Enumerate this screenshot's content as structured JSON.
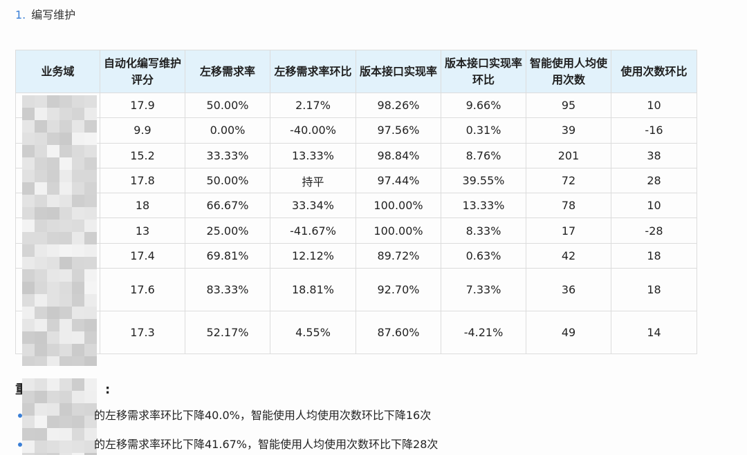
{
  "heading": {
    "number": "1.",
    "text": "编写维护"
  },
  "table": {
    "headers": [
      "业务域",
      "自动化编写维护评分",
      "左移需求率",
      "左移需求率环比",
      "版本接口实现率",
      "版本接口实现率环比",
      "智能使用人均使用次数",
      "使用次数环比"
    ],
    "rows": [
      {
        "score": "17.9",
        "shift": "50.00%",
        "shift_mom": "2.17%",
        "shift_mom_trend": "up",
        "impl": "98.26%",
        "impl_mom": "9.66%",
        "impl_mom_trend": "up",
        "usage": "95",
        "usage_mom": "10",
        "usage_mom_trend": "up"
      },
      {
        "score": "9.9",
        "shift": "0.00%",
        "shift_mom": "-40.00%",
        "shift_mom_trend": "down",
        "impl": "97.56%",
        "impl_mom": "0.31%",
        "impl_mom_trend": "up",
        "usage": "39",
        "usage_mom": "-16",
        "usage_mom_trend": "down"
      },
      {
        "score": "15.2",
        "shift": "33.33%",
        "shift_mom": "13.33%",
        "shift_mom_trend": "up",
        "impl": "98.84%",
        "impl_mom": "8.76%",
        "impl_mom_trend": "up",
        "usage": "201",
        "usage_mom": "38",
        "usage_mom_trend": "up"
      },
      {
        "score": "17.8",
        "shift": "50.00%",
        "shift_mom": "持平",
        "shift_mom_trend": "flat",
        "impl": "97.44%",
        "impl_mom": "39.55%",
        "impl_mom_trend": "up",
        "usage": "72",
        "usage_mom": "28",
        "usage_mom_trend": "up"
      },
      {
        "score": "18",
        "shift": "66.67%",
        "shift_mom": "33.34%",
        "shift_mom_trend": "up",
        "impl": "100.00%",
        "impl_mom": "13.33%",
        "impl_mom_trend": "up",
        "usage": "78",
        "usage_mom": "10",
        "usage_mom_trend": "up"
      },
      {
        "score": "13",
        "shift": "25.00%",
        "shift_mom": "-41.67%",
        "shift_mom_trend": "down",
        "impl": "100.00%",
        "impl_mom": "8.33%",
        "impl_mom_trend": "up",
        "usage": "17",
        "usage_mom": "-28",
        "usage_mom_trend": "down"
      },
      {
        "score": "17.4",
        "shift": "69.81%",
        "shift_mom": "12.12%",
        "shift_mom_trend": "up",
        "impl": "89.72%",
        "impl_mom": "0.63%",
        "impl_mom_trend": "up",
        "usage": "42",
        "usage_mom": "18",
        "usage_mom_trend": "up"
      },
      {
        "score": "17.6",
        "shift": "83.33%",
        "shift_mom": "18.81%",
        "shift_mom_trend": "up",
        "impl": "92.70%",
        "impl_mom": "7.33%",
        "impl_mom_trend": "up",
        "usage": "36",
        "usage_mom": "18",
        "usage_mom_trend": "up"
      },
      {
        "score": "17.3",
        "shift": "52.17%",
        "shift_mom": "4.55%",
        "shift_mom_trend": "up",
        "impl": "87.60%",
        "impl_mom": "-4.21%",
        "impl_mom_trend": "down",
        "usage": "49",
        "usage_mom": "14",
        "usage_mom_trend": "up"
      }
    ]
  },
  "summary": {
    "title_visible": "重",
    "title_suffix": ":",
    "bullets": [
      "的左移需求率环比下降40.0%，智能使用人均使用次数环比下降16次",
      "的左移需求率环比下降41.67%，智能使用人均使用次数环比下降28次"
    ]
  },
  "colors": {
    "up": "#1fa94c",
    "down": "#e53935",
    "header_bg": "#e2f2fb",
    "accent": "#3a7fd6"
  }
}
